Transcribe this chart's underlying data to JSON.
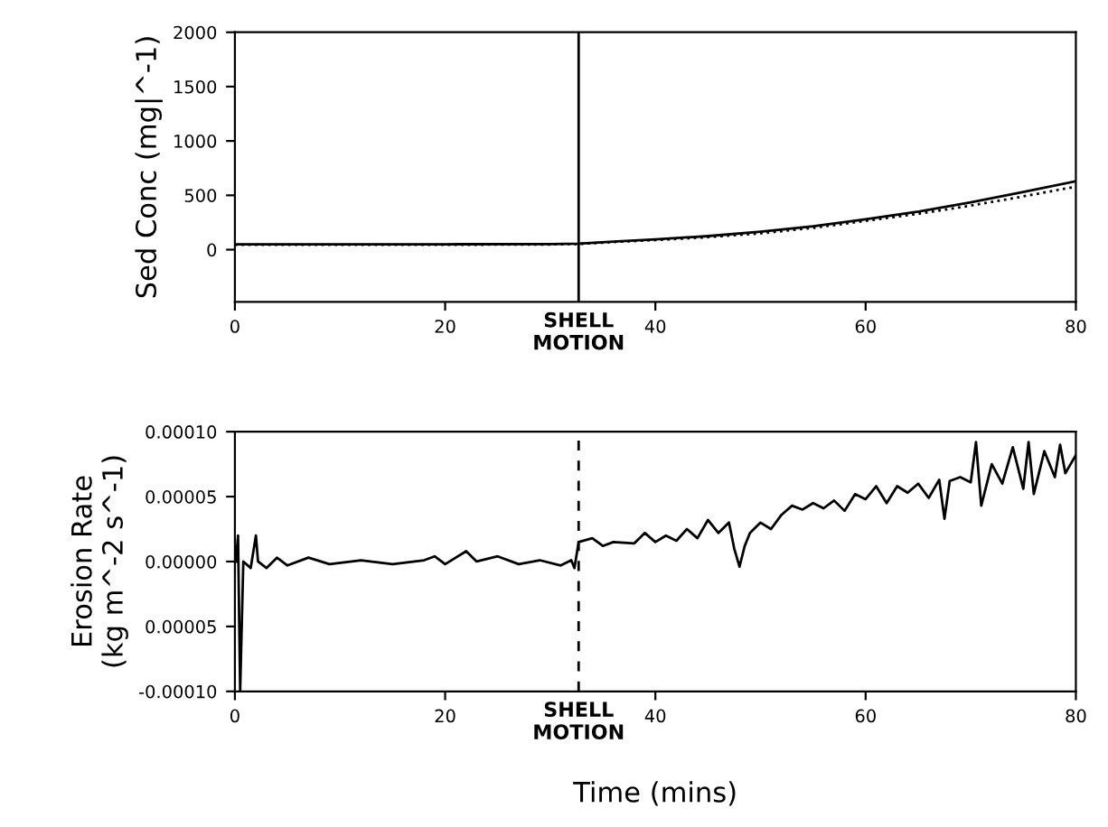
{
  "chart_data": [
    {
      "type": "line",
      "ylabel": "Sed Conc (mg|^-1)",
      "xlim": [
        0,
        80
      ],
      "xticks": [
        0,
        20,
        40,
        60,
        80
      ],
      "ylim": [
        -480,
        2000
      ],
      "yticks": [
        0,
        500,
        1000,
        1500,
        2000
      ],
      "grid": false,
      "legend": false,
      "ref_lines": [
        {
          "axis": "x",
          "value": 32.7,
          "label": "SHELL\nMOTION",
          "line_style": "solid"
        }
      ],
      "series": [
        {
          "color": "#000000",
          "line_style": "solid",
          "x": [
            0,
            10,
            20,
            30,
            32.7,
            36,
            40,
            45,
            50,
            55,
            60,
            65,
            70,
            75,
            80
          ],
          "values": [
            50,
            50,
            50,
            52,
            55,
            75,
            95,
            125,
            165,
            215,
            280,
            350,
            435,
            530,
            630
          ]
        },
        {
          "color": "#000000",
          "line_style": "dotted",
          "x": [
            0,
            10,
            20,
            30,
            32.7,
            36,
            40,
            45,
            50,
            55,
            60,
            65,
            70,
            75,
            80
          ],
          "values": [
            45,
            45,
            45,
            48,
            52,
            70,
            88,
            115,
            150,
            200,
            265,
            330,
            405,
            490,
            580
          ]
        }
      ]
    },
    {
      "type": "line",
      "xlabel": "Time (mins)",
      "ylabel": "Erosion Rate\n(kg m^-2 s^-1)",
      "xlim": [
        0,
        80
      ],
      "xticks": [
        0,
        20,
        40,
        60,
        80
      ],
      "ylim": [
        -0.0001,
        0.0001
      ],
      "yticks": [
        {
          "value": -0.0001,
          "label": "-0.00010"
        },
        {
          "value": -5e-05,
          "label": "0.00005"
        },
        {
          "value": 0,
          "label": "0.00000"
        },
        {
          "value": 5e-05,
          "label": "0.00005"
        },
        {
          "value": 0.0001,
          "label": "0.00010"
        }
      ],
      "grid": false,
      "legend": false,
      "ref_lines": [
        {
          "axis": "x",
          "value": 32.7,
          "label": "SHELL\nMOTION",
          "line_style": "dashed"
        }
      ],
      "series": [
        {
          "color": "#000000",
          "line_style": "solid",
          "x": [
            0.1,
            0.3,
            0.5,
            0.8,
            1.5,
            2.0,
            2.2,
            3,
            4,
            5,
            7,
            9,
            12,
            15,
            18,
            19,
            20,
            22,
            23,
            25,
            27,
            29,
            31,
            32,
            32.3,
            32.7,
            34,
            35,
            36,
            38,
            39,
            40,
            41,
            42,
            43,
            44,
            45,
            46,
            47,
            47.5,
            48,
            48.5,
            49,
            50,
            51,
            52,
            53,
            54,
            55,
            56,
            57,
            58,
            59,
            60,
            61,
            62,
            63,
            64,
            65,
            66,
            67,
            67.5,
            68,
            69,
            70,
            70.5,
            71,
            72,
            73,
            74,
            75,
            75.5,
            76,
            77,
            78,
            78.5,
            79,
            80
          ],
          "values": [
            0.0,
            2e-05,
            -0.0001,
            0.0,
            -5e-06,
            2e-05,
            0.0,
            -5e-06,
            3e-06,
            -3e-06,
            3e-06,
            -2e-06,
            1e-06,
            -2e-06,
            1e-06,
            4e-06,
            -2e-06,
            8e-06,
            0.0,
            4e-06,
            -2e-06,
            1e-06,
            -3e-06,
            1e-06,
            -5e-06,
            1.5e-05,
            1.8e-05,
            1.2e-05,
            1.5e-05,
            1.4e-05,
            2.2e-05,
            1.5e-05,
            2e-05,
            1.6e-05,
            2.5e-05,
            1.8e-05,
            3.2e-05,
            2.2e-05,
            3e-05,
            1e-05,
            -4e-06,
            1.2e-05,
            2.2e-05,
            3e-05,
            2.5e-05,
            3.6e-05,
            4.3e-05,
            4e-05,
            4.5e-05,
            4.1e-05,
            4.7e-05,
            3.9e-05,
            5.2e-05,
            4.8e-05,
            5.8e-05,
            4.5e-05,
            5.8e-05,
            5.3e-05,
            6e-05,
            4.9e-05,
            6.3e-05,
            3.3e-05,
            6.2e-05,
            6.5e-05,
            6.1e-05,
            9.2e-05,
            4.3e-05,
            7.5e-05,
            6e-05,
            8.8e-05,
            5.6e-05,
            9.2e-05,
            5.2e-05,
            8.5e-05,
            6.5e-05,
            9e-05,
            6.8e-05,
            8.2e-05
          ]
        }
      ]
    }
  ]
}
